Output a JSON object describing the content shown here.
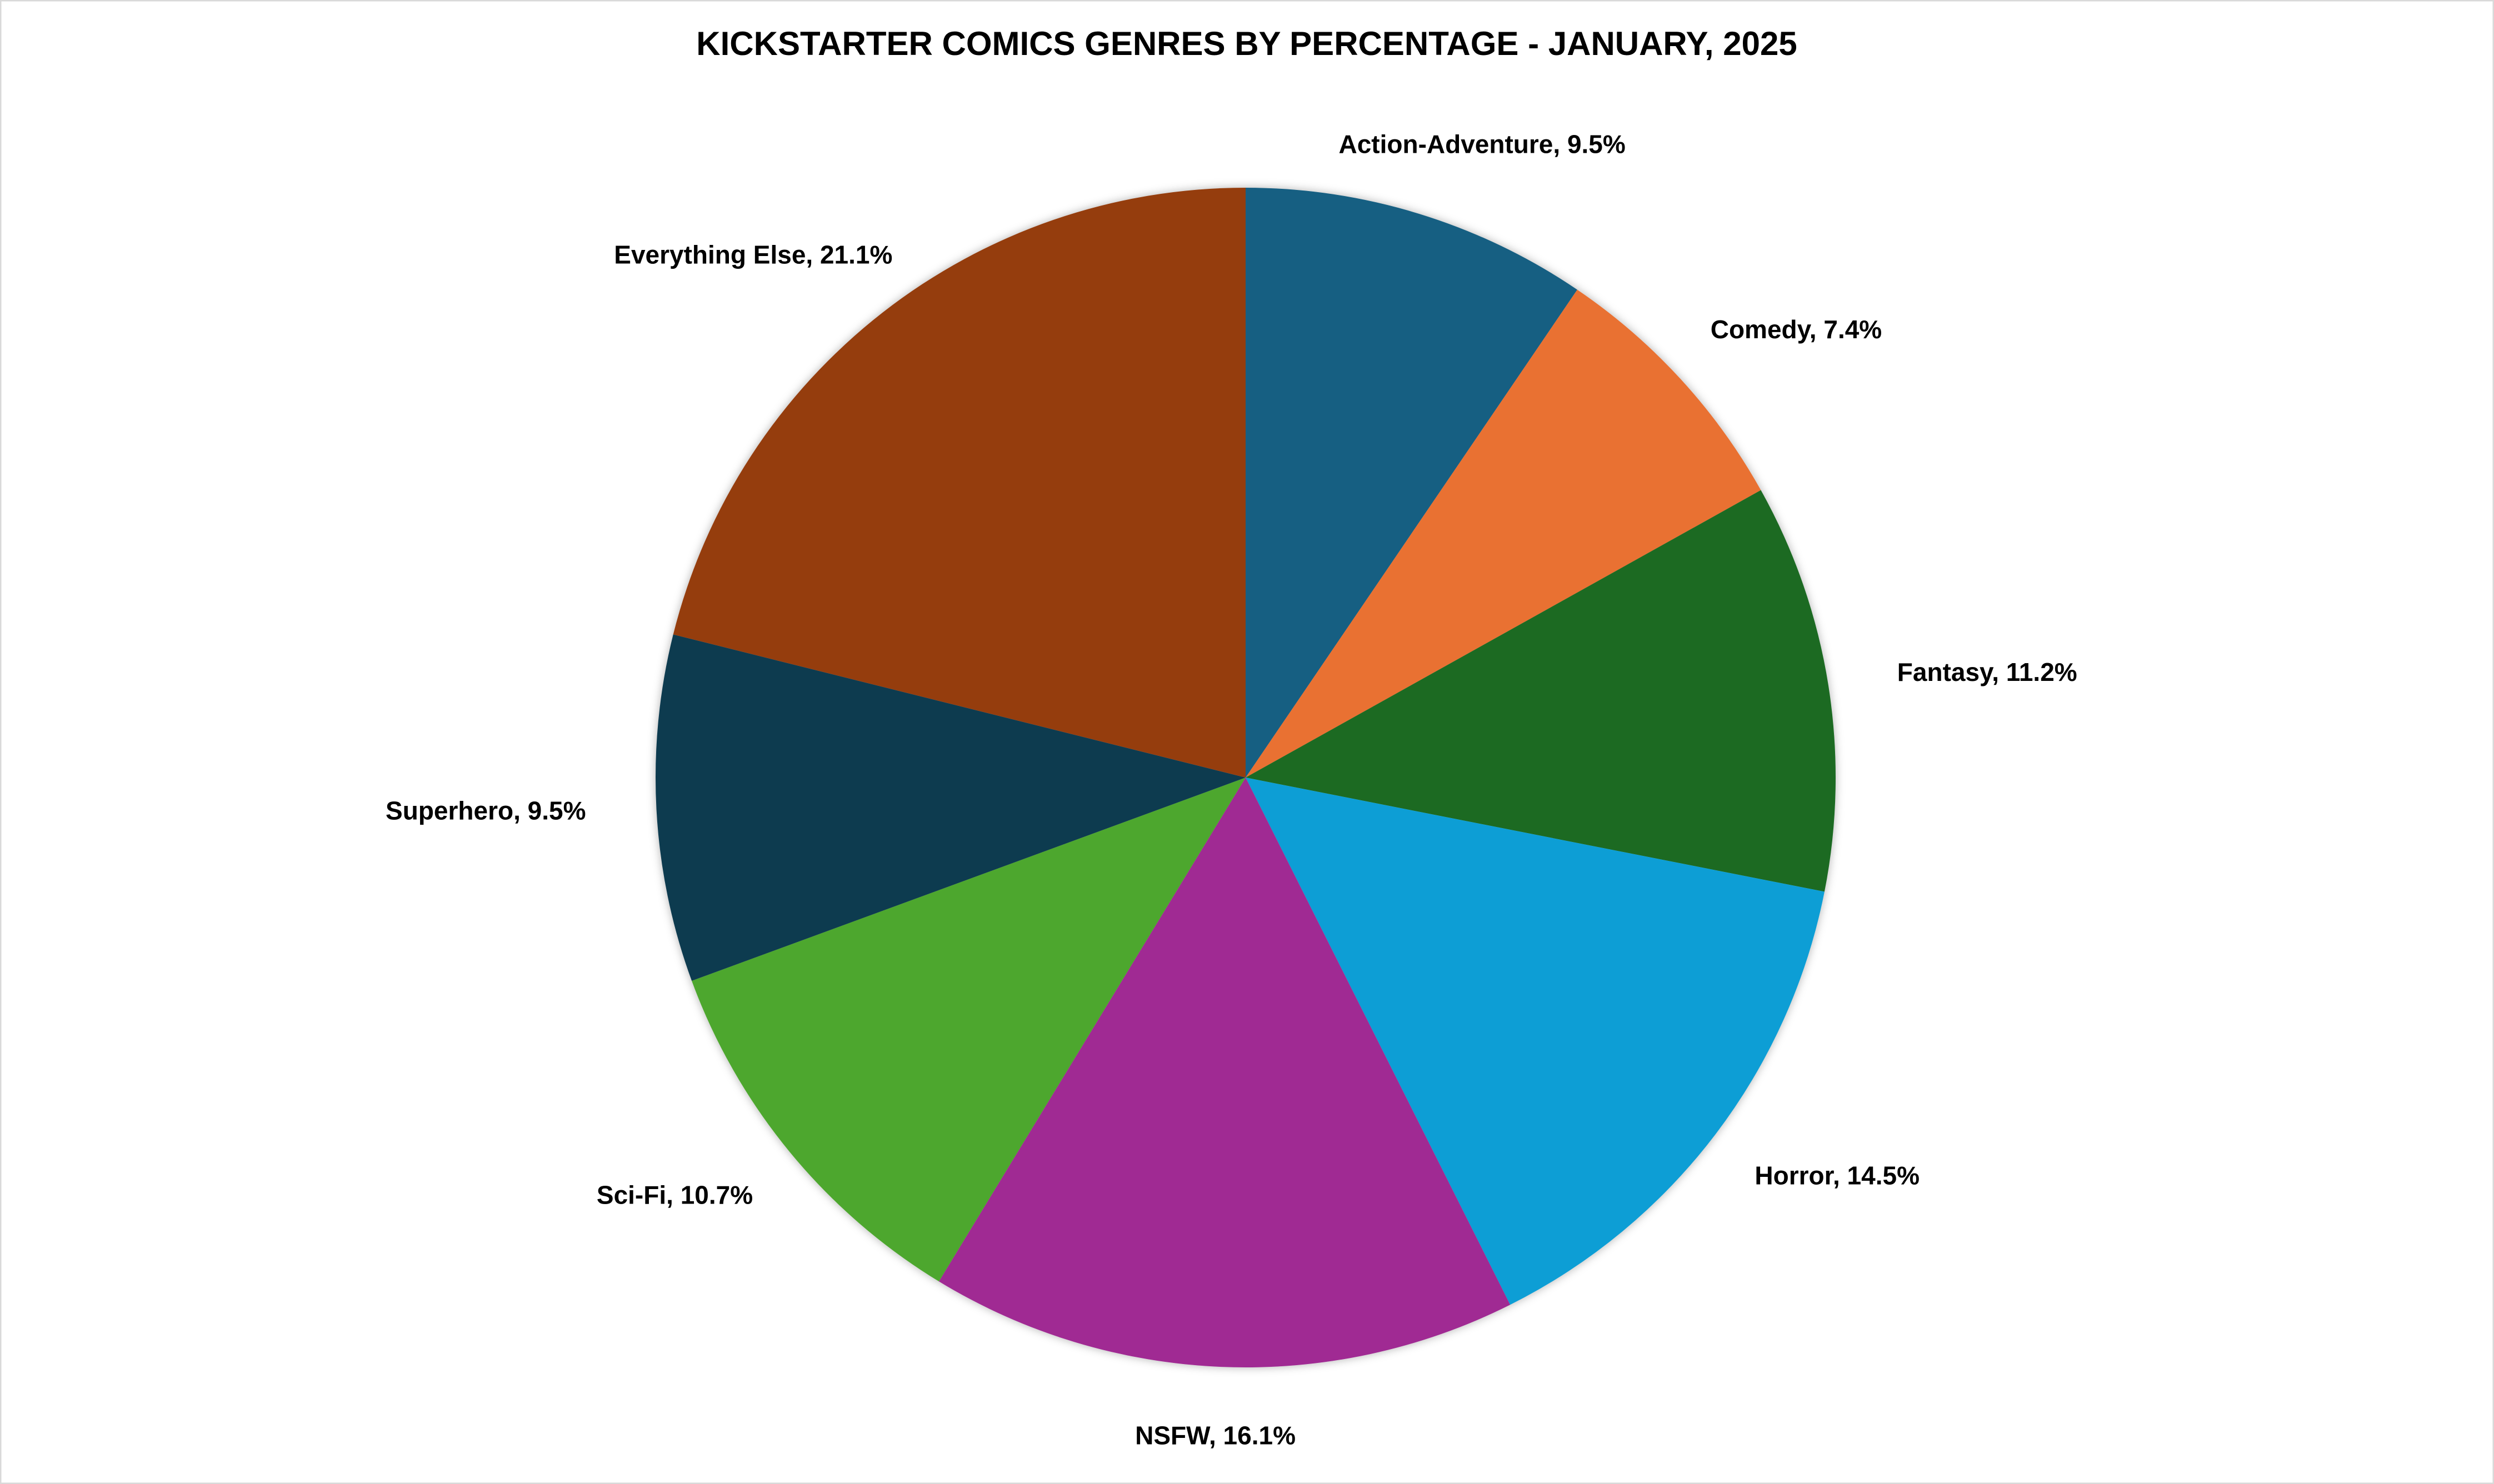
{
  "chart_data": {
    "type": "pie",
    "title": "KICKSTARTER COMICS GENRES BY PERCENTAGE - JANUARY, 2025",
    "values": [
      9.5,
      7.4,
      11.2,
      14.5,
      16.1,
      10.7,
      9.5,
      21.1
    ],
    "value_labels": [
      "Action-Adventure, 9.5%",
      "Comedy, 7.4%",
      "Fantasy, 11.2%",
      "Horror, 14.5%",
      "NSFW, 16.1%",
      "Sci-Fi, 10.7%",
      "Superhero, 9.5%",
      "Everything Else, 21.1%"
    ],
    "colors": [
      "#175f82",
      "#e97132",
      "#1a6b24",
      "#0f9ed5",
      "#a02b93",
      "#4ea72e",
      "#0e3a50",
      "#953c0f"
    ]
  }
}
